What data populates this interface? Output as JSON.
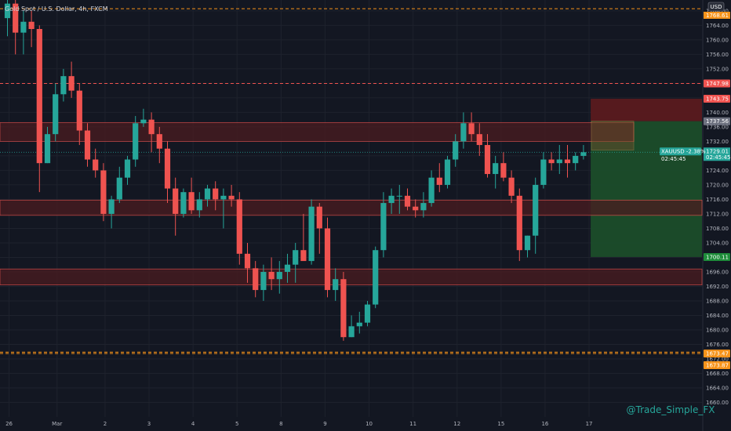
{
  "header": {
    "title": "Gold Spot / U.S. Dollar, 4h, FXCM",
    "currency_badge": "USD"
  },
  "watermark": "@Trade_Simple_FX",
  "colors": {
    "background": "#131722",
    "up": "#26a69a",
    "down": "#ef5350",
    "grid": "#1e222d",
    "axis_text": "#b2b5be",
    "red_level": "#ef5350",
    "orange_level": "#f7931a",
    "zone_fill": "#4a1c20",
    "tp_fill": "#1b4d2a",
    "sl_fill": "#5a1a1f"
  },
  "chart_data": {
    "type": "candlestick",
    "title": "Gold Spot / U.S. Dollar, 4h, FXCM",
    "y_range": [
      1656,
      1771
    ],
    "y_ticks": [
      1660,
      1664,
      1668,
      1672,
      1676,
      1680,
      1684,
      1688,
      1692,
      1696,
      1700,
      1704,
      1708,
      1712,
      1716,
      1720,
      1724,
      1728,
      1732,
      1736,
      1740,
      1744,
      1748,
      1752,
      1756,
      1760,
      1764,
      1768
    ],
    "x_tick_labels": [
      {
        "label": "26",
        "bar": 0.2
      },
      {
        "label": "Mar",
        "bar": 6.2
      },
      {
        "label": "2",
        "bar": 12.2
      },
      {
        "label": "3",
        "bar": 17.7
      },
      {
        "label": "4",
        "bar": 23.2
      },
      {
        "label": "5",
        "bar": 28.7
      },
      {
        "label": "8",
        "bar": 34.2
      },
      {
        "label": "9",
        "bar": 39.7
      },
      {
        "label": "10",
        "bar": 45.2
      },
      {
        "label": "11",
        "bar": 50.7
      },
      {
        "label": "12",
        "bar": 56.2
      },
      {
        "label": "15",
        "bar": 61.7
      },
      {
        "label": "16",
        "bar": 67.2
      },
      {
        "label": "17",
        "bar": 72.7
      }
    ],
    "candles": [
      {
        "o": 1766,
        "h": 1772,
        "l": 1761,
        "c": 1770
      },
      {
        "o": 1770,
        "h": 1772,
        "l": 1756,
        "c": 1762
      },
      {
        "o": 1762,
        "h": 1768,
        "l": 1756,
        "c": 1765
      },
      {
        "o": 1765,
        "h": 1768,
        "l": 1758,
        "c": 1763
      },
      {
        "o": 1763,
        "h": 1764,
        "l": 1718,
        "c": 1726
      },
      {
        "o": 1726,
        "h": 1736,
        "l": 1726,
        "c": 1734
      },
      {
        "o": 1734,
        "h": 1748,
        "l": 1732,
        "c": 1745
      },
      {
        "o": 1745,
        "h": 1752,
        "l": 1743,
        "c": 1750
      },
      {
        "o": 1750,
        "h": 1754,
        "l": 1744,
        "c": 1746
      },
      {
        "o": 1746,
        "h": 1748,
        "l": 1731,
        "c": 1735
      },
      {
        "o": 1735,
        "h": 1737,
        "l": 1725,
        "c": 1727
      },
      {
        "o": 1727,
        "h": 1730,
        "l": 1722,
        "c": 1724
      },
      {
        "o": 1724,
        "h": 1726,
        "l": 1710,
        "c": 1712
      },
      {
        "o": 1712,
        "h": 1717,
        "l": 1708,
        "c": 1716
      },
      {
        "o": 1716,
        "h": 1725,
        "l": 1715,
        "c": 1722
      },
      {
        "o": 1722,
        "h": 1728,
        "l": 1720,
        "c": 1727
      },
      {
        "o": 1727,
        "h": 1739,
        "l": 1725,
        "c": 1737
      },
      {
        "o": 1737,
        "h": 1741,
        "l": 1736,
        "c": 1738
      },
      {
        "o": 1738,
        "h": 1740,
        "l": 1729,
        "c": 1734
      },
      {
        "o": 1734,
        "h": 1736,
        "l": 1726,
        "c": 1730
      },
      {
        "o": 1730,
        "h": 1732,
        "l": 1715,
        "c": 1719
      },
      {
        "o": 1719,
        "h": 1722,
        "l": 1706,
        "c": 1712
      },
      {
        "o": 1712,
        "h": 1719,
        "l": 1711,
        "c": 1718
      },
      {
        "o": 1718,
        "h": 1722,
        "l": 1712,
        "c": 1713
      },
      {
        "o": 1713,
        "h": 1718,
        "l": 1711,
        "c": 1716
      },
      {
        "o": 1716,
        "h": 1720,
        "l": 1714,
        "c": 1719
      },
      {
        "o": 1719,
        "h": 1721,
        "l": 1713,
        "c": 1716
      },
      {
        "o": 1716,
        "h": 1719,
        "l": 1708,
        "c": 1717
      },
      {
        "o": 1717,
        "h": 1720,
        "l": 1714,
        "c": 1716
      },
      {
        "o": 1716,
        "h": 1718,
        "l": 1698,
        "c": 1701
      },
      {
        "o": 1701,
        "h": 1704,
        "l": 1693,
        "c": 1697
      },
      {
        "o": 1697,
        "h": 1699,
        "l": 1689,
        "c": 1691
      },
      {
        "o": 1691,
        "h": 1698,
        "l": 1688,
        "c": 1696
      },
      {
        "o": 1696,
        "h": 1700,
        "l": 1691,
        "c": 1694
      },
      {
        "o": 1694,
        "h": 1699,
        "l": 1690,
        "c": 1696
      },
      {
        "o": 1696,
        "h": 1701,
        "l": 1693,
        "c": 1698
      },
      {
        "o": 1698,
        "h": 1704,
        "l": 1693,
        "c": 1702
      },
      {
        "o": 1702,
        "h": 1712,
        "l": 1700,
        "c": 1699
      },
      {
        "o": 1699,
        "h": 1716,
        "l": 1698,
        "c": 1714
      },
      {
        "o": 1714,
        "h": 1715,
        "l": 1701,
        "c": 1708
      },
      {
        "o": 1708,
        "h": 1711,
        "l": 1689,
        "c": 1691
      },
      {
        "o": 1691,
        "h": 1697,
        "l": 1688,
        "c": 1694
      },
      {
        "o": 1694,
        "h": 1696,
        "l": 1677,
        "c": 1678
      },
      {
        "o": 1678,
        "h": 1684,
        "l": 1678,
        "c": 1681
      },
      {
        "o": 1681,
        "h": 1685,
        "l": 1679,
        "c": 1682
      },
      {
        "o": 1682,
        "h": 1688,
        "l": 1681,
        "c": 1687
      },
      {
        "o": 1687,
        "h": 1703,
        "l": 1686,
        "c": 1702
      },
      {
        "o": 1702,
        "h": 1718,
        "l": 1700,
        "c": 1715
      },
      {
        "o": 1715,
        "h": 1719,
        "l": 1712,
        "c": 1717
      },
      {
        "o": 1717,
        "h": 1720,
        "l": 1712,
        "c": 1717
      },
      {
        "o": 1717,
        "h": 1719,
        "l": 1713,
        "c": 1714
      },
      {
        "o": 1714,
        "h": 1716,
        "l": 1711,
        "c": 1713
      },
      {
        "o": 1713,
        "h": 1718,
        "l": 1711,
        "c": 1715
      },
      {
        "o": 1715,
        "h": 1724,
        "l": 1714,
        "c": 1722
      },
      {
        "o": 1722,
        "h": 1726,
        "l": 1718,
        "c": 1720
      },
      {
        "o": 1720,
        "h": 1728,
        "l": 1719,
        "c": 1727
      },
      {
        "o": 1727,
        "h": 1734,
        "l": 1725,
        "c": 1732
      },
      {
        "o": 1732,
        "h": 1740,
        "l": 1730,
        "c": 1737
      },
      {
        "o": 1737,
        "h": 1740,
        "l": 1732,
        "c": 1734
      },
      {
        "o": 1734,
        "h": 1737,
        "l": 1728,
        "c": 1731
      },
      {
        "o": 1731,
        "h": 1734,
        "l": 1722,
        "c": 1723
      },
      {
        "o": 1723,
        "h": 1728,
        "l": 1719,
        "c": 1726
      },
      {
        "o": 1726,
        "h": 1729,
        "l": 1721,
        "c": 1722
      },
      {
        "o": 1722,
        "h": 1724,
        "l": 1715,
        "c": 1717
      },
      {
        "o": 1717,
        "h": 1719,
        "l": 1699,
        "c": 1702
      },
      {
        "o": 1702,
        "h": 1706,
        "l": 1700,
        "c": 1706
      },
      {
        "o": 1706,
        "h": 1722,
        "l": 1701,
        "c": 1720
      },
      {
        "o": 1720,
        "h": 1729,
        "l": 1719,
        "c": 1727
      },
      {
        "o": 1727,
        "h": 1729,
        "l": 1724,
        "c": 1726
      },
      {
        "o": 1726,
        "h": 1731,
        "l": 1723,
        "c": 1727
      },
      {
        "o": 1727,
        "h": 1731,
        "l": 1722,
        "c": 1726
      },
      {
        "o": 1726,
        "h": 1729,
        "l": 1724,
        "c": 1728
      },
      {
        "o": 1728,
        "h": 1731,
        "l": 1727,
        "c": 1729
      }
    ],
    "zones": [
      {
        "name": "resistance-zone",
        "top": 1737.2,
        "bottom": 1732.0
      },
      {
        "name": "mid-zone",
        "top": 1715.8,
        "bottom": 1711.6
      },
      {
        "name": "support-zone",
        "top": 1696.8,
        "bottom": 1692.4
      }
    ],
    "levels": [
      {
        "name": "level-1747-98",
        "value": 1747.98,
        "color": "red",
        "label": "1747.98"
      },
      {
        "name": "level-1673-47",
        "value": 1673.47,
        "color": "orange",
        "label": "1673.47"
      },
      {
        "name": "level-1673-87",
        "value": 1673.87,
        "color": "orange",
        "label": "1673.87"
      },
      {
        "name": "level-top-orange",
        "value": 1768.6,
        "color": "orange",
        "label": "1768.61"
      }
    ],
    "position": {
      "entry": 1737.56,
      "stop": 1743.75,
      "target": 1700.11,
      "current": 1729.01,
      "symbol_label": "XAUUSD -2.38%",
      "countdown": "02:45:45"
    },
    "price_labels": {
      "stop": "1743.75",
      "entry": "1737.56",
      "target": "1700.11",
      "current": "1729.01",
      "top": "1768.61"
    }
  }
}
